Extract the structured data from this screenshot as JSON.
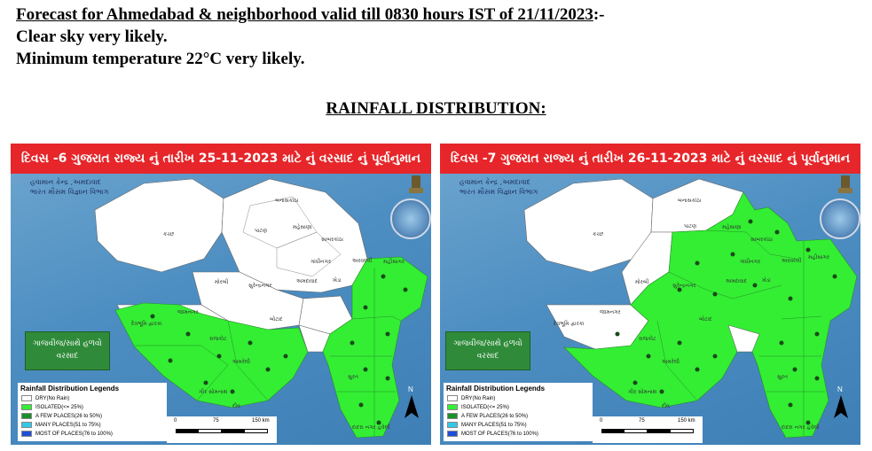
{
  "forecast": {
    "heading": "Forecast for Ahmedabad & neighborhood valid till 0830 hours IST of 21/11/2023",
    "heading_suffix": ":-",
    "line1": "Clear sky very likely.",
    "line2": "Minimum temperature 22°C very likely."
  },
  "section_title": "RAINFALL DISTRIBUTION:",
  "panels": [
    {
      "banner": "દિવસ -6 ગુજરાત રાજ્ય નું તારીખ 25-11-2023 માટે નું વરસાદ નું પૂર્વાનુમાન",
      "agency_line1": "હવામાન કેન્દ્ર ,અમદાવાદ",
      "agency_line2": "ભારત મૌસમ વિજ્ઞાન વિભાગ",
      "warning": "ગાજવીજ/સાથે હળવો વરસાદ",
      "region_labels": [
        "કચ્છ",
        "બનાસકાંઠા",
        "પાટણ",
        "મહેસાણા",
        "સાબરકાંઠા",
        "અરવલ્લી",
        "ગાંધીનગર",
        "મોરબી",
        "સુરેન્દ્રનગર",
        "અમદાવાદ",
        "ખેડા",
        "પંચમહાલ",
        "દાહોદ",
        "જામનગર",
        "દેવભૂમિ દ્વારકા",
        "રાજકોટ",
        "બોટાદ",
        "ભાવનગર",
        "અમરેલી",
        "જુનાગઢ",
        "પોરબંદર",
        "ગીર સોમનાથ",
        "આણંદ",
        "વડોદરા",
        "ભરૂચ",
        "નર્મદા",
        "સુરત",
        "તાપી",
        "નવસારી",
        "વલસાડ",
        "ડાંગ",
        "દીવ",
        "દમણ",
        "દાદરા નગર હવેલી"
      ],
      "regions_rain": "Saurashtra (Jamnagar, Devbhumi Dwarka, Rajkot, Porbandar, Junagadh, Gir Somnath, Amreli, Bhavnagar, Botad) and South Gujarat (Dahod, Panchmahal, Vadodara, Narmada, Bharuch, Surat, Tapi, Navsari, Dang, Valsad)"
    },
    {
      "banner": "દિવસ -7 ગુજરાત રાજ્ય નું તારીખ 26-11-2023 માટે નું વરસાદ નું પૂર્વાનુમાન",
      "agency_line1": "હવામાન કેન્દ્ર ,અમદાવાદ",
      "agency_line2": "ભારત મૌસમ વિજ્ઞાન વિભાગ",
      "warning": "ગાજવીજ/સાથે હળવો વરસાદ",
      "region_labels": [
        "કચ્છ",
        "બનાસકાંઠા",
        "પાટણ",
        "મહેસાણા",
        "સાબરકાંઠા",
        "અરવલ્લી",
        "ગાંધીનગર",
        "મોરબી",
        "સુરેન્દ્રનગર",
        "અમદાવાદ",
        "ખેડા",
        "પંચમહાલ",
        "દાહોદ",
        "જામનગર",
        "દેવભૂમિ દ્વારકા",
        "રાજકોટ",
        "બોટાદ",
        "ભાવનગર",
        "અમરેલી",
        "જુનાગઢ",
        "પોરબંદર",
        "ગીર સોમનાથ",
        "આણંદ",
        "વડોદરા",
        "ભરૂચ",
        "નર્મદા",
        "સુરત",
        "તાપી",
        "નવસારી",
        "વલસાડ",
        "ડાંગ",
        "દીવ",
        "દમણ",
        "દાદરા નગર હવેલી"
      ],
      "regions_rain": "All districts except Kutch, Banaskantha, Patan, Jamnagar, Devbhumi Dwarka and Morbi"
    }
  ],
  "legend": {
    "title": "Rainfall Distribution Legends",
    "items": [
      {
        "label": "DRY(No Rain)",
        "color": "#ffffff"
      },
      {
        "label": "ISOLATED(<= 25%)",
        "color": "#33ee33"
      },
      {
        "label": "A FEW PLACES(26 to 50%)",
        "color": "#1a8f2a"
      },
      {
        "label": "MANY PLACES(51 to 75%)",
        "color": "#33c8e8"
      },
      {
        "label": "MOST OF PLACES(76 to 100%)",
        "color": "#1f4fd8"
      }
    ]
  },
  "scale": {
    "ticks": [
      "0",
      "75",
      "150 km"
    ]
  },
  "north_label": "N",
  "colors": {
    "banner": "#e6262a",
    "rain": "#33ee33",
    "dry": "#ffffff",
    "sea": "#4d8ec2",
    "warning_box": "#2f8b3a"
  }
}
